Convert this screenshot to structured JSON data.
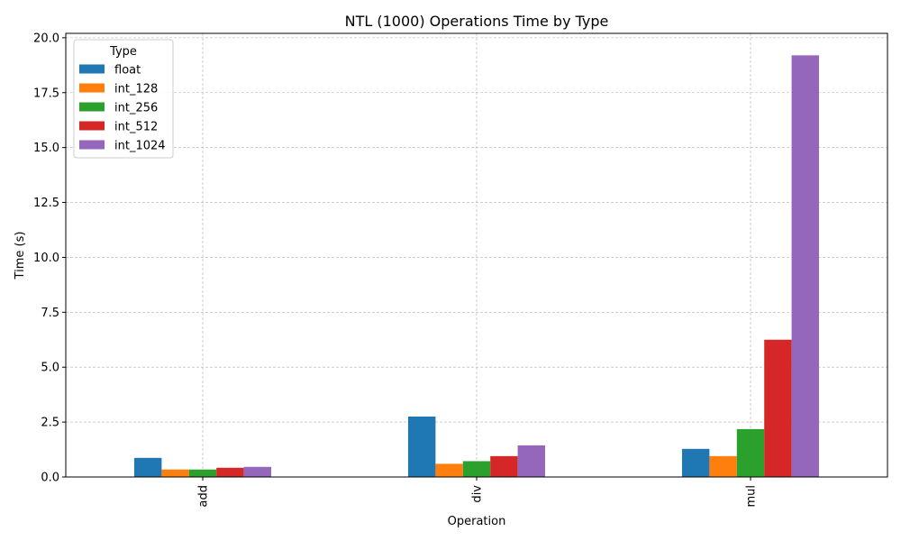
{
  "chart_data": {
    "type": "bar",
    "title": "NTL (1000) Operations Time by Type",
    "xlabel": "Operation",
    "ylabel": "Time (s)",
    "categories": [
      "add",
      "div",
      "mul"
    ],
    "ylim": [
      0,
      20.2
    ],
    "yticks": [
      0.0,
      2.5,
      5.0,
      7.5,
      10.0,
      12.5,
      15.0,
      17.5,
      20.0
    ],
    "ytick_labels": [
      "0.0",
      "2.5",
      "5.0",
      "7.5",
      "10.0",
      "12.5",
      "15.0",
      "17.5",
      "20.0"
    ],
    "grid": true,
    "legend": {
      "title": "Type",
      "position": "top-left"
    },
    "series": [
      {
        "name": "float",
        "color": "#1f77b4",
        "values": [
          0.87,
          2.75,
          1.28
        ]
      },
      {
        "name": "int_128",
        "color": "#ff7f0e",
        "values": [
          0.34,
          0.6,
          0.95
        ]
      },
      {
        "name": "int_256",
        "color": "#2ca02c",
        "values": [
          0.34,
          0.72,
          2.18
        ]
      },
      {
        "name": "int_512",
        "color": "#d62728",
        "values": [
          0.42,
          0.95,
          6.25
        ]
      },
      {
        "name": "int_1024",
        "color": "#9467bd",
        "values": [
          0.46,
          1.44,
          19.2
        ]
      }
    ]
  }
}
